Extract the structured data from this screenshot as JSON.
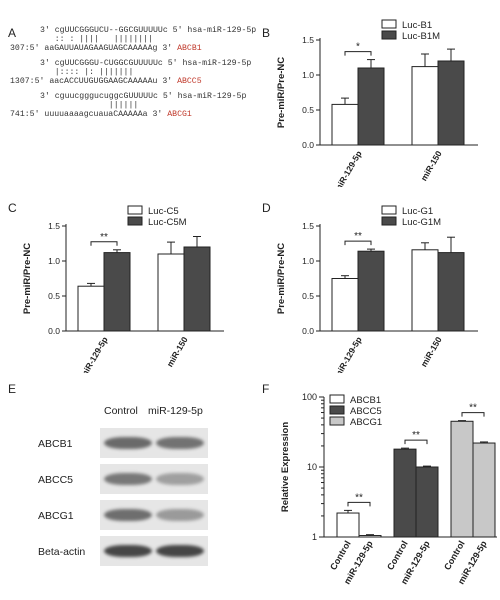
{
  "panelA": {
    "letter": "A",
    "rows": [
      {
        "top": "3' cgUUCGGGUCU--GGCGUUUUUc 5' ",
        "topMir": "hsa-miR-129-5p",
        "pair": "   :: : ||||   ||||||||",
        "pos": "307:5' ",
        "bottom": "aaGAUUAUAGAAGUAGCAAAAAg 3' ",
        "gene": "ABCB1"
      },
      {
        "top": "3' cgUUCGGGU-CUGGCGUUUUUc 5' ",
        "topMir": "hsa-miR-129-5p",
        "pair": "   |:::: |: |||||||",
        "pos": "1307:5' ",
        "bottom": "aacACCUUGUGGAAGCAAAAAu 3' ",
        "gene": "ABCC5"
      },
      {
        "top": "3' cguucgggucuggcGUUUUUc 5' ",
        "topMir": "hsa-miR-129-5p",
        "pair": "              ||||||",
        "pos": "741:5' ",
        "bottom": "uuuuaaaagcuauaCAAAAAa 3' ",
        "gene": "ABCG1"
      }
    ]
  },
  "panels": [
    {
      "id": "B",
      "letter": "B",
      "ylabel": "Pre-miR/Pre-NC",
      "ylim": [
        0,
        1.5
      ],
      "yticks": [
        "0.0",
        "0.5",
        "1.0",
        "1.5"
      ],
      "legend": [
        "Luc-B1",
        "Luc-B1M"
      ],
      "sig": "*"
    },
    {
      "id": "C",
      "letter": "C",
      "ylabel": "Pre-miR/Pre-NC",
      "ylim": [
        0,
        1.5
      ],
      "yticks": [
        "0.0",
        "0.5",
        "1.0",
        "1.5"
      ],
      "legend": [
        "Luc-C5",
        "Luc-C5M"
      ],
      "sig": "**"
    },
    {
      "id": "D",
      "letter": "D",
      "ylabel": "Pre-miR/Pre-NC",
      "ylim": [
        0,
        1.5
      ],
      "yticks": [
        "0.0",
        "0.5",
        "1.0",
        "1.5"
      ],
      "legend": [
        "Luc-G1",
        "Luc-G1M"
      ],
      "sig": "**"
    }
  ],
  "panelE": {
    "letter": "E",
    "cols": [
      "Control",
      "miR-129-5p"
    ],
    "rows": [
      {
        "label": "ABCB1",
        "intensity": [
          0.62,
          0.58
        ]
      },
      {
        "label": "ABCC5",
        "intensity": [
          0.55,
          0.35
        ]
      },
      {
        "label": "ABCG1",
        "intensity": [
          0.6,
          0.38
        ]
      },
      {
        "label": "Beta-actin",
        "intensity": [
          0.8,
          0.8
        ]
      }
    ]
  },
  "panelF": {
    "letter": "F",
    "ylabel": "Relative Expression",
    "yticks": [
      "1",
      "10",
      "100"
    ],
    "legend": [
      "ABCB1",
      "ABCC5",
      "ABCG1"
    ],
    "groups": [
      "Control",
      "miR-129-5p"
    ],
    "sig": "**"
  },
  "colors": {
    "white": "#ffffff",
    "dark": "#4a4a4a",
    "light": "#c8c8c8",
    "red": "#c0392b"
  },
  "chart_data": [
    {
      "type": "bar",
      "panel": "B",
      "categories": [
        "miR-129-5p",
        "miR-150"
      ],
      "series": [
        {
          "name": "Luc-B1",
          "values": [
            0.58,
            1.12
          ],
          "err": [
            0.09,
            0.18
          ]
        },
        {
          "name": "Luc-B1M",
          "values": [
            1.1,
            1.2
          ],
          "err": [
            0.12,
            0.17
          ]
        }
      ],
      "ylabel": "Pre-miR/Pre-NC",
      "ylim": [
        0,
        1.5
      ]
    },
    {
      "type": "bar",
      "panel": "C",
      "categories": [
        "miR-129-5p",
        "miR-150"
      ],
      "series": [
        {
          "name": "Luc-C5",
          "values": [
            0.64,
            1.1
          ],
          "err": [
            0.04,
            0.17
          ]
        },
        {
          "name": "Luc-C5M",
          "values": [
            1.12,
            1.2
          ],
          "err": [
            0.04,
            0.15
          ]
        }
      ],
      "ylabel": "Pre-miR/Pre-NC",
      "ylim": [
        0,
        1.5
      ]
    },
    {
      "type": "bar",
      "panel": "D",
      "categories": [
        "miR-129-5p",
        "miR-150"
      ],
      "series": [
        {
          "name": "Luc-G1",
          "values": [
            0.75,
            1.16
          ],
          "err": [
            0.04,
            0.1
          ]
        },
        {
          "name": "Luc-G1M",
          "values": [
            1.14,
            1.12
          ],
          "err": [
            0.03,
            0.22
          ]
        }
      ],
      "ylabel": "Pre-miR/Pre-NC",
      "ylim": [
        0,
        1.5
      ]
    },
    {
      "type": "bar",
      "panel": "F",
      "scale": "log",
      "ylim": [
        1,
        100
      ],
      "categories": [
        "ABCB1",
        "ABCC5",
        "ABCG1"
      ],
      "series": [
        {
          "name": "Control",
          "values": [
            2.2,
            18,
            45
          ],
          "err": [
            0.2,
            0.6,
            1
          ]
        },
        {
          "name": "miR-129-5p",
          "values": [
            1.05,
            10,
            22
          ],
          "err": [
            0.03,
            0.3,
            0.8
          ]
        }
      ],
      "ylabel": "Relative Expression"
    }
  ]
}
